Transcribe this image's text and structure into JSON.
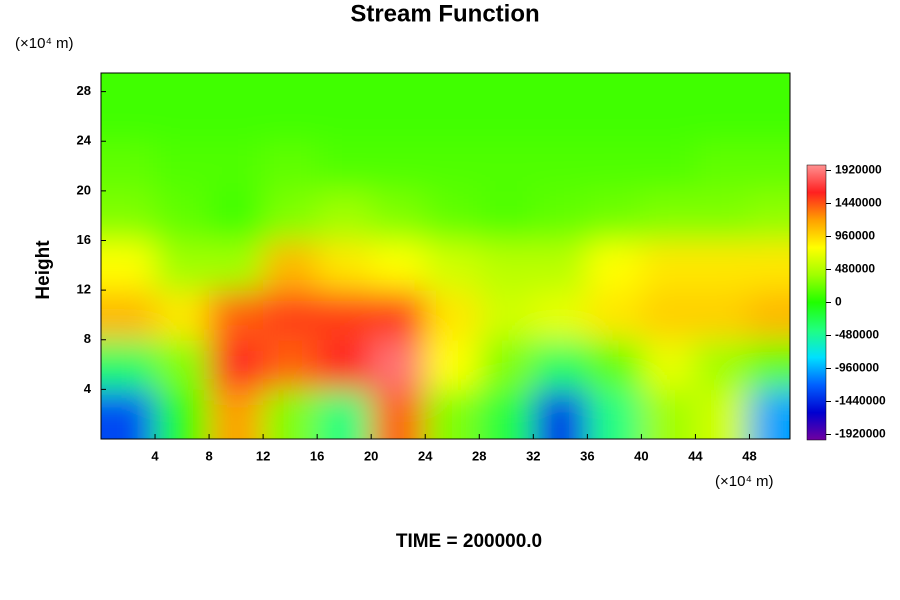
{
  "chart_data": {
    "type": "heatmap",
    "title": "Stream Function",
    "y_label": "Height",
    "y_unit": "(×10⁴ m)",
    "x_unit": "(×10⁴ m)",
    "footer": "TIME = 200000.0",
    "xlim": [
      0,
      51
    ],
    "ylim": [
      0,
      29.5
    ],
    "xticks": [
      4,
      8,
      12,
      16,
      20,
      24,
      28,
      32,
      36,
      40,
      44,
      48
    ],
    "yticks": [
      4,
      8,
      12,
      16,
      20,
      24,
      28
    ],
    "x": [
      2,
      6,
      10,
      14,
      18,
      22,
      26,
      30,
      34,
      38,
      42,
      46,
      50
    ],
    "y": [
      2,
      6,
      10,
      14,
      18,
      22,
      26,
      30
    ],
    "values": [
      [
        -1300000,
        0,
        1200000,
        300000,
        -400000,
        1400000,
        300000,
        -200000,
        -1400000,
        -400000,
        400000,
        600000,
        -1000000
      ],
      [
        -300000,
        300000,
        1600000,
        1400000,
        1600000,
        1900000,
        800000,
        300000,
        -300000,
        200000,
        700000,
        400000,
        200000
      ],
      [
        1100000,
        900000,
        1400000,
        1500000,
        1500000,
        1500000,
        900000,
        600000,
        700000,
        900000,
        1000000,
        1000000,
        1100000
      ],
      [
        800000,
        400000,
        400000,
        1100000,
        900000,
        800000,
        600000,
        500000,
        500000,
        800000,
        900000,
        900000,
        900000
      ],
      [
        300000,
        200000,
        100000,
        300000,
        400000,
        300000,
        200000,
        150000,
        200000,
        250000,
        300000,
        300000,
        350000
      ],
      [
        200000,
        150000,
        150000,
        200000,
        150000,
        150000,
        150000,
        150000,
        150000,
        150000,
        150000,
        200000,
        200000
      ],
      [
        100000,
        100000,
        100000,
        100000,
        100000,
        100000,
        100000,
        100000,
        100000,
        100000,
        100000,
        100000,
        100000
      ],
      [
        100000,
        100000,
        100000,
        100000,
        100000,
        100000,
        100000,
        100000,
        100000,
        100000,
        100000,
        100000,
        100000
      ]
    ],
    "clim": [
      -2000000,
      2000000
    ],
    "cticks": [
      1920000,
      1440000,
      960000,
      480000,
      0,
      -480000,
      -960000,
      -1440000,
      -1920000
    ],
    "colormap": [
      "#7000a0",
      "#0000d0",
      "#0060ff",
      "#00e0ff",
      "#20ff80",
      "#20ff00",
      "#a0ff00",
      "#ffff00",
      "#ffa000",
      "#ff2020",
      "#ff9090"
    ]
  }
}
